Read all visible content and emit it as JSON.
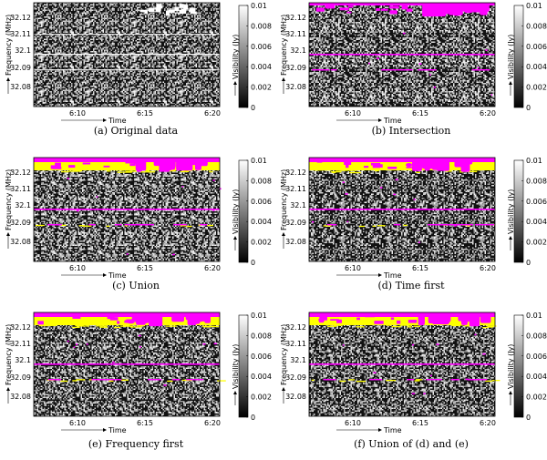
{
  "colors": {
    "flag": "#ff00ff",
    "flag_extra": "#ffff00",
    "noise_dark": "#111111",
    "noise_light": "#e6e6e6"
  },
  "chart_data": [
    {
      "type": "heatmap",
      "caption": "(a) Original data",
      "xlabel": "Time",
      "ylabel": "Frequency (MHz)",
      "x_ticks": [
        "6:10",
        "6:15",
        "6:20"
      ],
      "y_ticks": [
        "32.12",
        "32.11",
        "32.1",
        "32.09",
        "32.08"
      ],
      "colorbar": {
        "label": "Visibility (Jy)",
        "ticks": [
          "0.01",
          "0.008",
          "0.006",
          "0.004",
          "0.002",
          "0"
        ],
        "range": [
          0,
          0.01
        ]
      },
      "flags": {
        "magenta": "none",
        "yellow": "none"
      }
    },
    {
      "type": "heatmap",
      "caption": "(b) Intersection",
      "xlabel": "Time",
      "ylabel": "Frequency (MHz)",
      "x_ticks": [
        "6:10",
        "6:15",
        "6:20"
      ],
      "y_ticks": [
        "32.12",
        "32.11",
        "32.1",
        "32.09",
        "32.08"
      ],
      "colorbar": {
        "label": "Visibility (Jy)",
        "ticks": [
          "0.01",
          "0.008",
          "0.006",
          "0.004",
          "0.002",
          "0"
        ],
        "range": [
          0,
          0.01
        ]
      },
      "flags": {
        "magenta": "top band and horizontal lines",
        "yellow": "none"
      }
    },
    {
      "type": "heatmap",
      "caption": "(c) Union",
      "xlabel": "Time",
      "ylabel": "Frequency (MHz)",
      "x_ticks": [
        "6:10",
        "6:15",
        "6:20"
      ],
      "y_ticks": [
        "32.12",
        "32.11",
        "32.1",
        "32.09",
        "32.08"
      ],
      "colorbar": {
        "label": "Visibility (Jy)",
        "ticks": [
          "0.01",
          "0.008",
          "0.006",
          "0.004",
          "0.002",
          "0"
        ],
        "range": [
          0,
          0.01
        ]
      },
      "flags": {
        "magenta": "top band and horizontal lines",
        "yellow": "extra flags around top band and lines"
      }
    },
    {
      "type": "heatmap",
      "caption": "(d) Time first",
      "xlabel": "Time",
      "ylabel": "Frequency (MHz)",
      "x_ticks": [
        "6:10",
        "6:15",
        "6:20"
      ],
      "y_ticks": [
        "32.12",
        "32.11",
        "32.1",
        "32.09",
        "32.08"
      ],
      "colorbar": {
        "label": "Visibility (Jy)",
        "ticks": [
          "0.01",
          "0.008",
          "0.006",
          "0.004",
          "0.002",
          "0"
        ],
        "range": [
          0,
          0.01
        ]
      },
      "flags": {
        "magenta": "top band and horizontal lines",
        "yellow": "extra flags around top band and lines"
      }
    },
    {
      "type": "heatmap",
      "caption": "(e) Frequency first",
      "xlabel": "Time",
      "ylabel": "Frequency (MHz)",
      "x_ticks": [
        "6:10",
        "6:15",
        "6:20"
      ],
      "y_ticks": [
        "32.12",
        "32.11",
        "32.1",
        "32.09",
        "32.08"
      ],
      "colorbar": {
        "label": "Visibility (Jy)",
        "ticks": [
          "0.01",
          "0.008",
          "0.006",
          "0.004",
          "0.002",
          "0"
        ],
        "range": [
          0,
          0.01
        ]
      },
      "flags": {
        "magenta": "top band and horizontal lines",
        "yellow": "extra flags around top band and lines"
      }
    },
    {
      "type": "heatmap",
      "caption": "(f) Union of (d) and (e)",
      "xlabel": "Time",
      "ylabel": "Frequency (MHz)",
      "x_ticks": [
        "6:10",
        "6:15",
        "6:20"
      ],
      "y_ticks": [
        "32.12",
        "32.11",
        "32.1",
        "32.09",
        "32.08"
      ],
      "colorbar": {
        "label": "Visibility (Jy)",
        "ticks": [
          "0.01",
          "0.008",
          "0.006",
          "0.004",
          "0.002",
          "0"
        ],
        "range": [
          0,
          0.01
        ]
      },
      "flags": {
        "magenta": "top band and horizontal lines",
        "yellow": "extra flags around top band and lines"
      }
    }
  ]
}
